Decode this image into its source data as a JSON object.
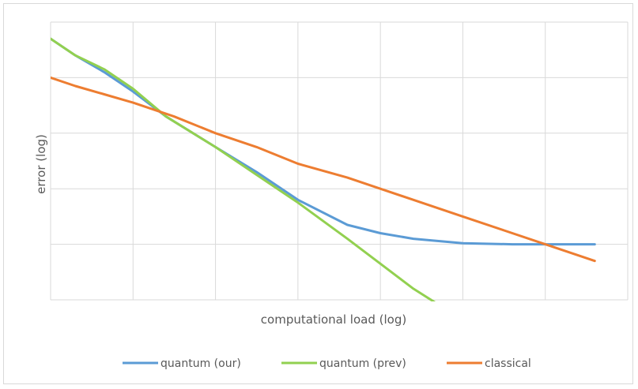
{
  "chart_data": {
    "type": "line",
    "xlabel": "computational load (log)",
    "ylabel": "error (log)",
    "x_scale": "log",
    "y_scale": "log",
    "xlim": [
      0,
      7
    ],
    "ylim": [
      0,
      5
    ],
    "x_tick_labels_shown": false,
    "y_tick_labels_shown": false,
    "grid": true,
    "legend_position": "bottom",
    "series": [
      {
        "name": "quantum (our)",
        "color": "#5B9BD5",
        "x": [
          0,
          0.3,
          0.65,
          1.0,
          1.4,
          2.0,
          2.5,
          3.0,
          3.6,
          4.0,
          4.4,
          5.0,
          5.6,
          6.0,
          6.6
        ],
        "y": [
          4.7,
          4.4,
          4.1,
          3.75,
          3.3,
          2.75,
          2.3,
          1.8,
          1.35,
          1.2,
          1.1,
          1.02,
          1.0,
          1.0,
          1.0
        ]
      },
      {
        "name": "quantum (prev)",
        "color": "#92D050",
        "x": [
          0,
          0.3,
          0.65,
          1.0,
          1.4,
          2.0,
          2.5,
          3.0,
          3.6,
          4.0,
          4.4,
          4.72
        ],
        "y": [
          4.7,
          4.4,
          4.15,
          3.8,
          3.3,
          2.75,
          2.25,
          1.75,
          1.1,
          0.65,
          0.2,
          -0.1
        ]
      },
      {
        "name": "classical",
        "color": "#ED7D31",
        "x": [
          0,
          0.3,
          0.65,
          1.0,
          1.5,
          2.0,
          2.5,
          3.0,
          3.6,
          4.0,
          4.5,
          5.0,
          5.5,
          6.0,
          6.6
        ],
        "y": [
          4.0,
          3.85,
          3.7,
          3.55,
          3.3,
          3.0,
          2.75,
          2.45,
          2.2,
          2.0,
          1.75,
          1.5,
          1.25,
          1.0,
          0.7
        ]
      }
    ]
  }
}
